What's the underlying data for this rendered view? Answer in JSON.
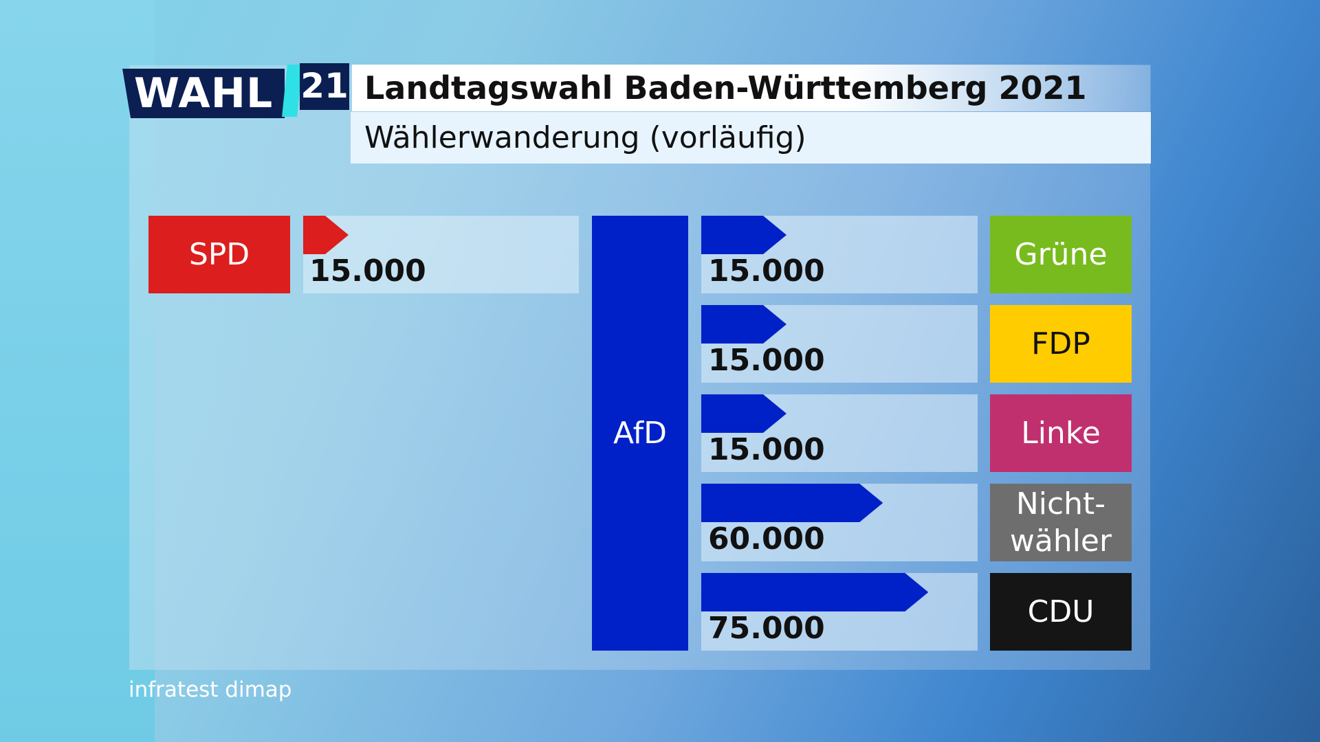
{
  "header": {
    "logo_text": "WAHL",
    "logo_year": "21",
    "title": "Landtagswahl Baden-Württemberg 2021",
    "subtitle": "Wählerwanderung (vorläufig)"
  },
  "chart_data": {
    "type": "bar",
    "title": "Landtagswahl Baden-Württemberg 2021",
    "subtitle": "Wählerwanderung (vorläufig)",
    "center_party": "AfD",
    "center_color": "#0021c8",
    "gains_from": [
      {
        "party": "SPD",
        "value": 15000,
        "label": "15.000",
        "box_color": "#dc1e1e",
        "text_color": "#ffffff",
        "arrow_color": "#dc1e1e"
      }
    ],
    "losses_to": [
      {
        "party": "Grüne",
        "value": 15000,
        "label": "15.000",
        "box_color": "#78bb1e",
        "text_color": "#ffffff",
        "arrow_color": "#0021c8"
      },
      {
        "party": "FDP",
        "value": 15000,
        "label": "15.000",
        "box_color": "#ffcc00",
        "text_color": "#111111",
        "arrow_color": "#0021c8"
      },
      {
        "party": "Linke",
        "value": 15000,
        "label": "15.000",
        "box_color": "#c0306e",
        "text_color": "#ffffff",
        "arrow_color": "#0021c8"
      },
      {
        "party": "Nicht-\nwähler",
        "value": 60000,
        "label": "60.000",
        "box_color": "#6e6e6e",
        "text_color": "#ffffff",
        "arrow_color": "#0021c8"
      },
      {
        "party": "CDU",
        "value": 75000,
        "label": "75.000",
        "box_color": "#151515",
        "text_color": "#ffffff",
        "arrow_color": "#0021c8"
      }
    ],
    "max_value": 75000
  },
  "source": "infratest dimap"
}
